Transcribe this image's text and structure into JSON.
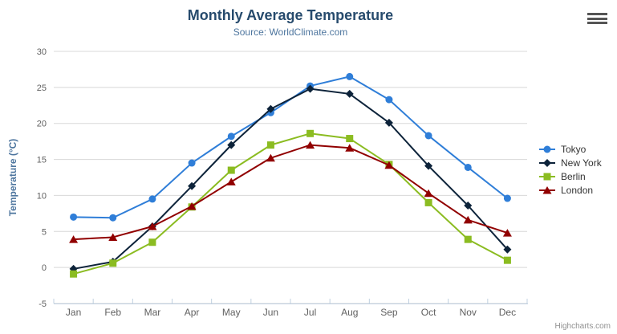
{
  "header": {
    "title": "Monthly Average Temperature",
    "subtitle": "Source: WorldClimate.com"
  },
  "export_menu": {
    "icon": "hamburger-menu-icon"
  },
  "credits": {
    "label": "Highcharts.com"
  },
  "chart_data": {
    "type": "line",
    "title": "Monthly Average Temperature",
    "subtitle": "Source: WorldClimate.com",
    "categories": [
      "Jan",
      "Feb",
      "Mar",
      "Apr",
      "May",
      "Jun",
      "Jul",
      "Aug",
      "Sep",
      "Oct",
      "Nov",
      "Dec"
    ],
    "series": [
      {
        "name": "Tokyo",
        "color": "#2f7ed8",
        "marker": "circle",
        "values": [
          7.0,
          6.9,
          9.5,
          14.5,
          18.2,
          21.5,
          25.2,
          26.5,
          23.3,
          18.3,
          13.9,
          9.6
        ]
      },
      {
        "name": "New York",
        "color": "#0d233a",
        "marker": "diamond",
        "values": [
          -0.2,
          0.8,
          5.7,
          11.3,
          17.0,
          22.0,
          24.8,
          24.1,
          20.1,
          14.1,
          8.6,
          2.5
        ]
      },
      {
        "name": "Berlin",
        "color": "#8bbc21",
        "marker": "square",
        "values": [
          -0.9,
          0.6,
          3.5,
          8.4,
          13.5,
          17.0,
          18.6,
          17.9,
          14.3,
          9.0,
          3.9,
          1.0
        ]
      },
      {
        "name": "London",
        "color": "#910000",
        "marker": "triangle",
        "values": [
          3.9,
          4.2,
          5.7,
          8.5,
          11.9,
          15.2,
          17.0,
          16.6,
          14.2,
          10.3,
          6.6,
          4.8
        ]
      }
    ],
    "xlabel": "",
    "ylabel": "Temperature (°C)",
    "ylim": [
      -5,
      30
    ],
    "yticks": [
      -5,
      0,
      5,
      10,
      15,
      20,
      25,
      30
    ],
    "grid": true,
    "legend_position": "right",
    "colors": {
      "grid_line": "#d8d8d8",
      "axis_line": "#c0d0e0",
      "tick_label": "#606060",
      "title_text": "#274b6d",
      "subtitle_text": "#4d759e",
      "axis_title_text": "#4d759e",
      "legend_text": "#333333",
      "credits_text": "#909090"
    }
  }
}
